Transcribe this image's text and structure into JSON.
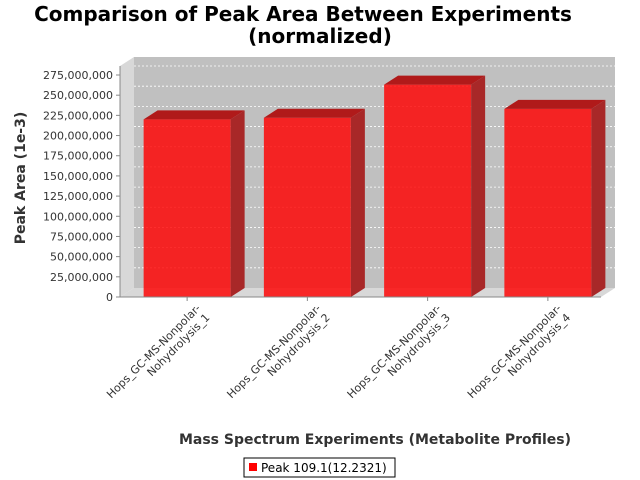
{
  "chart_data": {
    "type": "bar",
    "title_lines": [
      "Comparison of Peak Area Between Experiments",
      "(normalized)"
    ],
    "xlabel": "Mass Spectrum Experiments (Metabolite Profiles)",
    "ylabel": "Peak Area (1e-3)",
    "categories": [
      [
        "Hops_GC-MS-Nonpolar-",
        "Nohydrolysis_1"
      ],
      [
        "Hops_GC-MS-Nonpolar-",
        "Nohydrolysis_2"
      ],
      [
        "Hops_GC-MS-Nonpolar-",
        "Nohydrolysis_3"
      ],
      [
        "Hops_GC-MS-Nonpolar-",
        "Nohydrolysis_4"
      ]
    ],
    "series": [
      {
        "name": "Peak 109.1(12.2321)",
        "color": "#ff0000",
        "values": [
          230000000,
          232000000,
          273000000,
          243000000
        ]
      }
    ],
    "ylim": [
      0,
      275000000
    ],
    "yticks": [
      0,
      25000000,
      50000000,
      75000000,
      100000000,
      125000000,
      150000000,
      175000000,
      200000000,
      225000000,
      250000000,
      275000000
    ],
    "ytick_labels": [
      "0",
      "25,000,000",
      "50,000,000",
      "75,000,000",
      "100,000,000",
      "125,000,000",
      "150,000,000",
      "175,000,000",
      "200,000,000",
      "225,000,000",
      "250,000,000",
      "275,000,000"
    ],
    "grid": true,
    "legend_position": "bottom",
    "plot_background": "#c0c0c0"
  }
}
